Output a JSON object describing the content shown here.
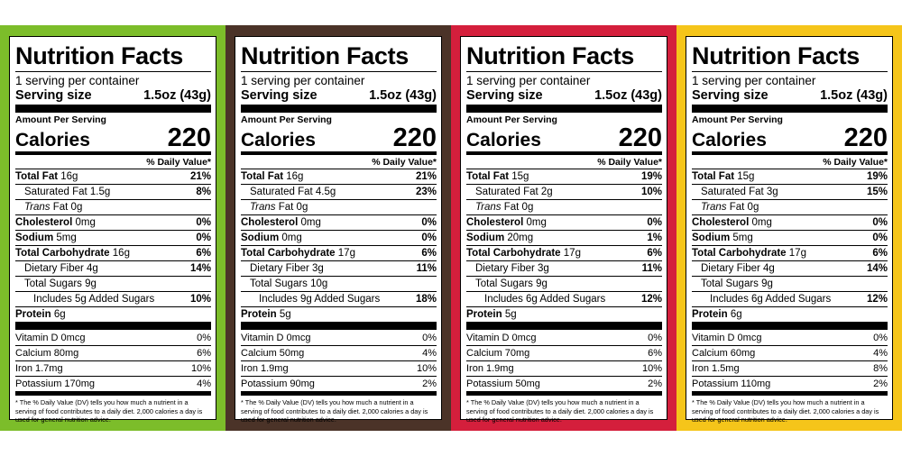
{
  "labels": [
    {
      "color": "#7cbd2a",
      "title": "Nutrition Facts",
      "servings": "1 serving per container",
      "serving_size_label": "Serving size",
      "serving_size_value": "1.5oz (43g)",
      "amount_per_serving": "Amount Per Serving",
      "calories_label": "Calories",
      "calories": "220",
      "dv_header": "% Daily Value*",
      "total_fat": {
        "label": "Total Fat",
        "amount": "16g",
        "dv": "21%"
      },
      "sat_fat": {
        "label": "Saturated Fat 1.5g",
        "dv": "8%"
      },
      "trans_fat": {
        "label": "Trans",
        "amount": "Fat 0g"
      },
      "cholesterol": {
        "label": "Cholesterol",
        "amount": "0mg",
        "dv": "0%"
      },
      "sodium": {
        "label": "Sodium",
        "amount": "5mg",
        "dv": "0%"
      },
      "total_carb": {
        "label": "Total Carbohydrate",
        "amount": "16g",
        "dv": "6%"
      },
      "fiber": {
        "label": "Dietary Fiber 4g",
        "dv": "14%"
      },
      "sugars": {
        "label": "Total Sugars 9g"
      },
      "added_sugars": {
        "label": "Includes 5g Added Sugars",
        "dv": "10%"
      },
      "protein": {
        "label": "Protein",
        "amount": "6g"
      },
      "vitamins": [
        {
          "label": "Vitamin D 0mcg",
          "dv": "0%"
        },
        {
          "label": "Calcium 80mg",
          "dv": "6%"
        },
        {
          "label": "Iron 1.7mg",
          "dv": "10%"
        },
        {
          "label": "Potassium 170mg",
          "dv": "4%"
        }
      ],
      "footnote": "* The % Daily Value (DV) tells you how much a nutrient in a serving of food contributes to a daily diet. 2,000 calories a day is used for general nutrition advice."
    },
    {
      "color": "#4b3328",
      "title": "Nutrition Facts",
      "servings": "1 serving per container",
      "serving_size_label": "Serving size",
      "serving_size_value": "1.5oz (43g)",
      "amount_per_serving": "Amount Per Serving",
      "calories_label": "Calories",
      "calories": "220",
      "dv_header": "% Daily Value*",
      "total_fat": {
        "label": "Total Fat",
        "amount": "16g",
        "dv": "21%"
      },
      "sat_fat": {
        "label": "Saturated Fat 4.5g",
        "dv": "23%"
      },
      "trans_fat": {
        "label": "Trans",
        "amount": "Fat 0g"
      },
      "cholesterol": {
        "label": "Cholesterol",
        "amount": "0mg",
        "dv": "0%"
      },
      "sodium": {
        "label": "Sodium",
        "amount": "0mg",
        "dv": "0%"
      },
      "total_carb": {
        "label": "Total Carbohydrate",
        "amount": "17g",
        "dv": "6%"
      },
      "fiber": {
        "label": "Dietary Fiber 3g",
        "dv": "11%"
      },
      "sugars": {
        "label": "Total Sugars 10g"
      },
      "added_sugars": {
        "label": "Includes 9g Added Sugars",
        "dv": "18%"
      },
      "protein": {
        "label": "Protein",
        "amount": "5g"
      },
      "vitamins": [
        {
          "label": "Vitamin D 0mcg",
          "dv": "0%"
        },
        {
          "label": "Calcium 50mg",
          "dv": "4%"
        },
        {
          "label": "Iron 1.9mg",
          "dv": "10%"
        },
        {
          "label": "Potassium 90mg",
          "dv": "2%"
        }
      ],
      "footnote": "* The % Daily Value (DV) tells you how much a nutrient in a serving of food contributes to a daily diet. 2,000 calories a day is used for general nutrition advice."
    },
    {
      "color": "#d41f3c",
      "title": "Nutrition Facts",
      "servings": "1 serving per container",
      "serving_size_label": "Serving size",
      "serving_size_value": "1.5oz (43g)",
      "amount_per_serving": "Amount Per Serving",
      "calories_label": "Calories",
      "calories": "220",
      "dv_header": "% Daily Value*",
      "total_fat": {
        "label": "Total Fat",
        "amount": "15g",
        "dv": "19%"
      },
      "sat_fat": {
        "label": "Saturated Fat 2g",
        "dv": "10%"
      },
      "trans_fat": {
        "label": "Trans",
        "amount": "Fat 0g"
      },
      "cholesterol": {
        "label": "Cholesterol",
        "amount": "0mg",
        "dv": "0%"
      },
      "sodium": {
        "label": "Sodium",
        "amount": "20mg",
        "dv": "1%"
      },
      "total_carb": {
        "label": "Total Carbohydrate",
        "amount": "17g",
        "dv": "6%"
      },
      "fiber": {
        "label": "Dietary Fiber 3g",
        "dv": "11%"
      },
      "sugars": {
        "label": "Total Sugars 9g"
      },
      "added_sugars": {
        "label": "Includes 6g Added Sugars",
        "dv": "12%"
      },
      "protein": {
        "label": "Protein",
        "amount": "5g"
      },
      "vitamins": [
        {
          "label": "Vitamin D 0mcg",
          "dv": "0%"
        },
        {
          "label": "Calcium 70mg",
          "dv": "6%"
        },
        {
          "label": "Iron 1.9mg",
          "dv": "10%"
        },
        {
          "label": "Potassium 50mg",
          "dv": "2%"
        }
      ],
      "footnote": "* The % Daily Value (DV) tells you how much a nutrient in a serving of food contributes to a daily diet. 2,000 calories a day is used for general nutrition advice."
    },
    {
      "color": "#f5c51a",
      "title": "Nutrition Facts",
      "servings": "1 serving per container",
      "serving_size_label": "Serving size",
      "serving_size_value": "1.5oz (43g)",
      "amount_per_serving": "Amount Per Serving",
      "calories_label": "Calories",
      "calories": "220",
      "dv_header": "% Daily Value*",
      "total_fat": {
        "label": "Total Fat",
        "amount": "15g",
        "dv": "19%"
      },
      "sat_fat": {
        "label": "Saturated Fat 3g",
        "dv": "15%"
      },
      "trans_fat": {
        "label": "Trans",
        "amount": "Fat 0g"
      },
      "cholesterol": {
        "label": "Cholesterol",
        "amount": "0mg",
        "dv": "0%"
      },
      "sodium": {
        "label": "Sodium",
        "amount": "5mg",
        "dv": "0%"
      },
      "total_carb": {
        "label": "Total Carbohydrate",
        "amount": "17g",
        "dv": "6%"
      },
      "fiber": {
        "label": "Dietary Fiber 4g",
        "dv": "14%"
      },
      "sugars": {
        "label": "Total Sugars 9g"
      },
      "added_sugars": {
        "label": "Includes 6g Added Sugars",
        "dv": "12%"
      },
      "protein": {
        "label": "Protein",
        "amount": "6g"
      },
      "vitamins": [
        {
          "label": "Vitamin D 0mcg",
          "dv": "0%"
        },
        {
          "label": "Calcium 60mg",
          "dv": "4%"
        },
        {
          "label": "Iron 1.5mg",
          "dv": "8%"
        },
        {
          "label": "Potassium 110mg",
          "dv": "2%"
        }
      ],
      "footnote": "* The % Daily Value (DV) tells you how much a nutrient in a serving of food contributes to a daily diet. 2,000 calories a day is used for general nutrition advice."
    }
  ]
}
